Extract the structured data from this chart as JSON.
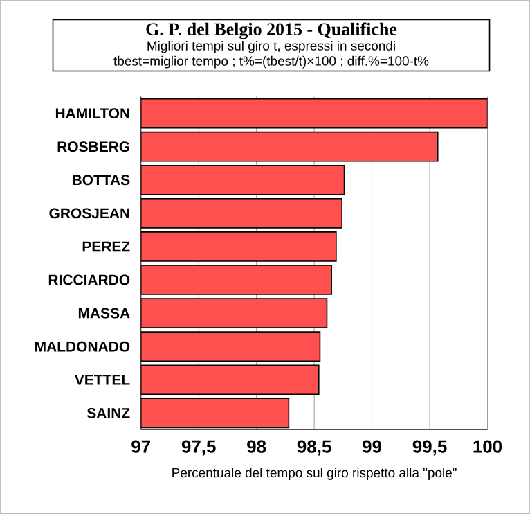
{
  "chart_data": {
    "type": "bar",
    "orientation": "horizontal",
    "title": "G. P. del Belgio 2015 - Qualifiche",
    "subtitle": "Migliori tempi sul giro t, espressi in secondi",
    "annotations": [
      "tbest=miglior tempo ; t%=(tbest/t)×100 ; diff.%=100-t%"
    ],
    "categories": [
      "HAMILTON",
      "ROSBERG",
      "BOTTAS",
      "GROSJEAN",
      "PEREZ",
      "RICCIARDO",
      "MASSA",
      "MALDONADO",
      "VETTEL",
      "SAINZ"
    ],
    "values": [
      100,
      99.57,
      98.76,
      98.74,
      98.69,
      98.65,
      98.61,
      98.55,
      98.54,
      98.28
    ],
    "color": "#ff5050",
    "xlim": [
      97,
      100
    ],
    "xticks": [
      97,
      {
        "value": 97.5,
        "label": "97,5"
      },
      98,
      {
        "value": 98.5,
        "label": "98,5"
      },
      99,
      {
        "value": 99.5,
        "label": "99,5"
      },
      100
    ],
    "xlabel": "Percentuale del tempo sul giro rispetto alla \"pole\"",
    "grid": "x"
  }
}
